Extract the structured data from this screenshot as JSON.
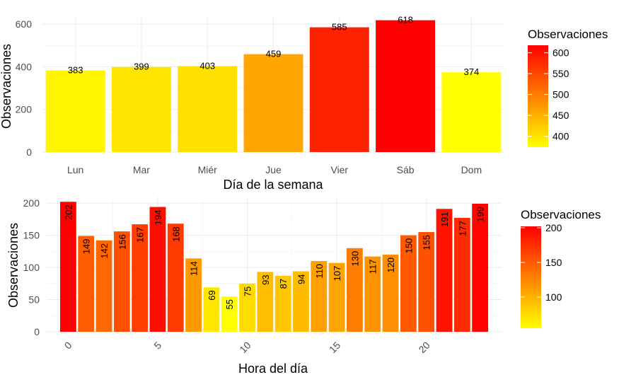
{
  "chart_data": [
    {
      "type": "bar",
      "categories": [
        "Lun",
        "Mar",
        "Miér",
        "Jue",
        "Vier",
        "Sáb",
        "Dom"
      ],
      "values": [
        383,
        399,
        403,
        459,
        585,
        618,
        374
      ],
      "data_labels": [
        "383",
        "399",
        "403",
        "459",
        "585",
        "618",
        "374"
      ],
      "xlabel": "Día de la semana",
      "ylabel": "Observaciones",
      "ylim": [
        0,
        640
      ],
      "yticks": [
        0,
        200,
        400,
        600
      ],
      "ytick_labels": [
        "0",
        "200",
        "400",
        "600"
      ],
      "grid": true,
      "legend": {
        "title": "Observaciones",
        "position": "right",
        "range": [
          374,
          618
        ],
        "ticks": [
          400,
          450,
          500,
          550,
          600
        ],
        "tick_labels": [
          "400",
          "450",
          "500",
          "550",
          "600"
        ],
        "colors": [
          "#ffff00",
          "#ff0000"
        ]
      }
    },
    {
      "type": "bar",
      "x": [
        0,
        1,
        2,
        3,
        4,
        5,
        6,
        7,
        8,
        9,
        10,
        11,
        12,
        13,
        14,
        15,
        16,
        17,
        18,
        19,
        20,
        21,
        22,
        23
      ],
      "values": [
        202,
        149,
        142,
        156,
        167,
        194,
        168,
        114,
        69,
        55,
        75,
        93,
        87,
        94,
        110,
        107,
        130,
        117,
        120,
        150,
        155,
        191,
        177,
        199
      ],
      "data_labels": [
        "202",
        "149",
        "142",
        "156",
        "167",
        "194",
        "168",
        "114",
        "69",
        "55",
        "75",
        "93",
        "87",
        "94",
        "110",
        "107",
        "130",
        "117",
        "120",
        "150",
        "155",
        "191",
        "177",
        "199"
      ],
      "xlabel": "Hora del día",
      "ylabel": "Observaciones",
      "xlim": [
        -0.5,
        23.5
      ],
      "xticks": [
        0,
        5,
        10,
        15,
        20
      ],
      "xtick_labels": [
        "0",
        "5",
        "10",
        "15",
        "20"
      ],
      "ylim": [
        0,
        210
      ],
      "yticks": [
        0,
        50,
        100,
        150,
        200
      ],
      "ytick_labels": [
        "0",
        "50",
        "100",
        "150",
        "200"
      ],
      "grid": true,
      "legend": {
        "title": "Observaciones",
        "position": "right",
        "range": [
          55,
          202
        ],
        "ticks": [
          100,
          150,
          200
        ],
        "tick_labels": [
          "100",
          "150",
          "200"
        ],
        "colors": [
          "#ffff00",
          "#ff0000"
        ]
      }
    }
  ]
}
